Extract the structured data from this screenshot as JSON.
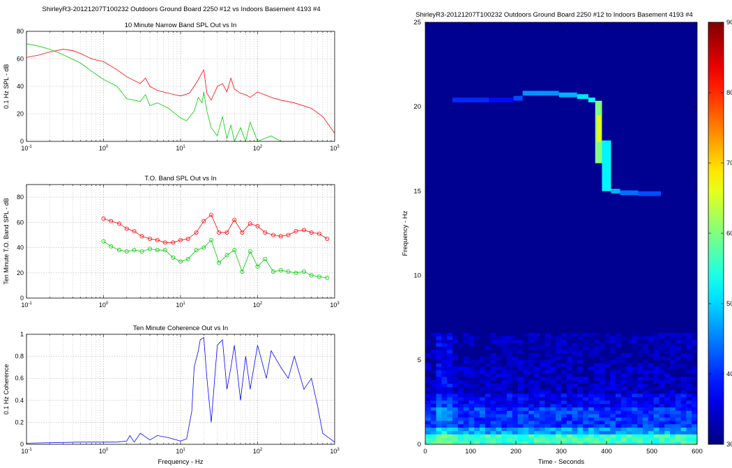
{
  "left_figure": {
    "suptitle": "ShirleyR3-20121207T100232 Outdoors Ground Board 2250 #12 vs Indoors Basement 4193 #4"
  },
  "right_figure": {
    "title": "ShirleyR3-20121207T100232 Outdoors Ground Board 2250 #12 to Indoors Basement 4193 #4"
  },
  "chart_data": [
    {
      "id": "narrow-band",
      "type": "line",
      "title": "10 Minute Narrow Band SPL Out vs In",
      "xlabel": "",
      "ylabel": "0.1 Hz SPL - dB",
      "xscale": "log",
      "xlim": [
        0.1,
        1000
      ],
      "ylim": [
        0,
        80
      ],
      "yticks": [
        0,
        20,
        40,
        60,
        80
      ],
      "grid": true,
      "series": [
        {
          "color": "#ff0000",
          "x": [
            0.1,
            0.15,
            0.2,
            0.3,
            0.4,
            0.5,
            0.7,
            1,
            1.5,
            2,
            3,
            3.5,
            4,
            5,
            7,
            10,
            13,
            15,
            17,
            19,
            20,
            22,
            25,
            30,
            35,
            40,
            45,
            50,
            60,
            70,
            80,
            100,
            150,
            200,
            300,
            500,
            700,
            1000
          ],
          "y": [
            61,
            63,
            65,
            67,
            66,
            64,
            60,
            58,
            52,
            47,
            42,
            46,
            40,
            37,
            35,
            33,
            35,
            40,
            45,
            50,
            52,
            35,
            30,
            40,
            42,
            36,
            46,
            38,
            35,
            34,
            32,
            36,
            32,
            30,
            28,
            24,
            18,
            6
          ]
        },
        {
          "color": "#00cc00",
          "x": [
            0.1,
            0.15,
            0.2,
            0.3,
            0.5,
            0.7,
            1,
            1.5,
            2,
            3,
            3.5,
            4,
            5,
            7,
            10,
            12,
            15,
            17,
            19,
            20,
            22,
            25,
            30,
            35,
            40,
            45,
            50,
            60,
            70,
            80,
            100,
            150,
            200,
            300
          ],
          "y": [
            71,
            69,
            67,
            63,
            57,
            51,
            45,
            40,
            31,
            29,
            34,
            26,
            28,
            24,
            17,
            15,
            22,
            32,
            28,
            36,
            22,
            10,
            4,
            18,
            2,
            12,
            0,
            10,
            0,
            14,
            0,
            4,
            0,
            0
          ]
        }
      ]
    },
    {
      "id": "to-band",
      "type": "line",
      "title": "T.O. Band SPL Out vs In",
      "xlabel": "",
      "ylabel": "Ten Minute T.O. Band SPL - dB",
      "xscale": "log",
      "xlim": [
        0.1,
        1000
      ],
      "ylim": [
        0,
        90
      ],
      "yticks": [
        0,
        20,
        40,
        60,
        80
      ],
      "grid": true,
      "series": [
        {
          "color": "#ff0000",
          "marker": "circle",
          "x": [
            1,
            1.25,
            1.6,
            2,
            2.5,
            3.15,
            4,
            5,
            6.3,
            8,
            10,
            12.5,
            16,
            20,
            25,
            31.5,
            40,
            50,
            63,
            80,
            100,
            125,
            160,
            200,
            250,
            315,
            400,
            500,
            630,
            800
          ],
          "y": [
            63,
            61,
            59,
            55,
            53,
            49,
            47,
            46,
            44,
            44,
            46,
            47,
            52,
            61,
            66,
            52,
            52,
            62,
            52,
            59,
            57,
            52,
            50,
            49,
            50,
            53,
            54,
            52,
            51,
            47
          ]
        },
        {
          "color": "#00cc00",
          "marker": "circle",
          "x": [
            1,
            1.25,
            1.6,
            2,
            2.5,
            3.15,
            4,
            5,
            6.3,
            8,
            10,
            12.5,
            16,
            20,
            25,
            31.5,
            40,
            50,
            63,
            80,
            100,
            125,
            160,
            200,
            250,
            315,
            400,
            500,
            630,
            800
          ],
          "y": [
            45,
            41,
            38,
            37,
            38,
            37,
            39,
            38,
            38,
            32,
            29,
            31,
            38,
            40,
            46,
            28,
            34,
            38,
            21,
            37,
            25,
            31,
            21,
            22,
            21,
            20,
            21,
            18,
            17,
            16
          ]
        }
      ]
    },
    {
      "id": "coherence",
      "type": "line",
      "title": "Ten Minute Coherence Out vs In",
      "xlabel": "Frequency - Hz",
      "ylabel": "0.1 Hz Coherence",
      "xscale": "log",
      "xlim": [
        0.1,
        1000
      ],
      "ylim": [
        0,
        1
      ],
      "yticks": [
        0,
        0.2,
        0.4,
        0.6,
        0.8,
        1
      ],
      "grid": true,
      "series": [
        {
          "color": "#0000ff",
          "x": [
            0.1,
            0.5,
            1,
            1.5,
            2,
            2.2,
            2.5,
            3,
            4,
            5,
            7,
            10,
            12,
            14,
            15,
            17,
            18,
            20,
            22,
            25,
            30,
            35,
            40,
            45,
            50,
            60,
            70,
            80,
            100,
            130,
            150,
            200,
            250,
            300,
            400,
            500,
            600,
            700,
            1000
          ],
          "y": [
            0.01,
            0.02,
            0.02,
            0.02,
            0.03,
            0.08,
            0.02,
            0.1,
            0.04,
            0.08,
            0.06,
            0.03,
            0.05,
            0.3,
            0.7,
            0.85,
            0.95,
            0.97,
            0.6,
            0.2,
            0.9,
            0.95,
            0.5,
            0.7,
            0.9,
            0.4,
            0.8,
            0.5,
            0.9,
            0.6,
            0.85,
            0.7,
            0.6,
            0.8,
            0.5,
            0.6,
            0.35,
            0.1,
            0.02
          ]
        }
      ]
    },
    {
      "id": "spectrogram",
      "type": "heatmap",
      "xlabel": "Time - Seconds",
      "ylabel": "Frequency - Hz",
      "xlim": [
        0,
        600
      ],
      "ylim": [
        0,
        25
      ],
      "xticks": [
        0,
        100,
        200,
        300,
        400,
        500,
        600
      ],
      "yticks": [
        0,
        5,
        10,
        15,
        20,
        25
      ],
      "colorbar": {
        "range": [
          30,
          90
        ],
        "ticks": [
          30,
          40,
          50,
          60,
          70,
          80,
          90
        ],
        "colormap": "jet"
      },
      "tone_track": [
        {
          "t": [
            60,
            140
          ],
          "f": 20.4,
          "level": 40
        },
        {
          "t": [
            140,
            195
          ],
          "f": 20.4,
          "level": 38
        },
        {
          "t": [
            195,
            215
          ],
          "f": 20.5,
          "level": 42
        },
        {
          "t": [
            215,
            295
          ],
          "f": 20.8,
          "level": 46
        },
        {
          "t": [
            295,
            335
          ],
          "f": 20.7,
          "level": 48
        },
        {
          "t": [
            335,
            360
          ],
          "f": 20.6,
          "level": 51
        },
        {
          "t": [
            360,
            375
          ],
          "f": 20.4,
          "level": 53
        },
        {
          "t": [
            375,
            390
          ],
          "f": 18.5,
          "level": 60,
          "span": 3.7
        },
        {
          "t": [
            390,
            410
          ],
          "f": 16.5,
          "level": 52,
          "span": 3.0
        },
        {
          "t": [
            410,
            430
          ],
          "f": 15.0,
          "level": 48
        },
        {
          "t": [
            430,
            470
          ],
          "f": 14.9,
          "level": 44
        },
        {
          "t": [
            470,
            520
          ],
          "f": 14.85,
          "level": 42
        }
      ]
    }
  ]
}
